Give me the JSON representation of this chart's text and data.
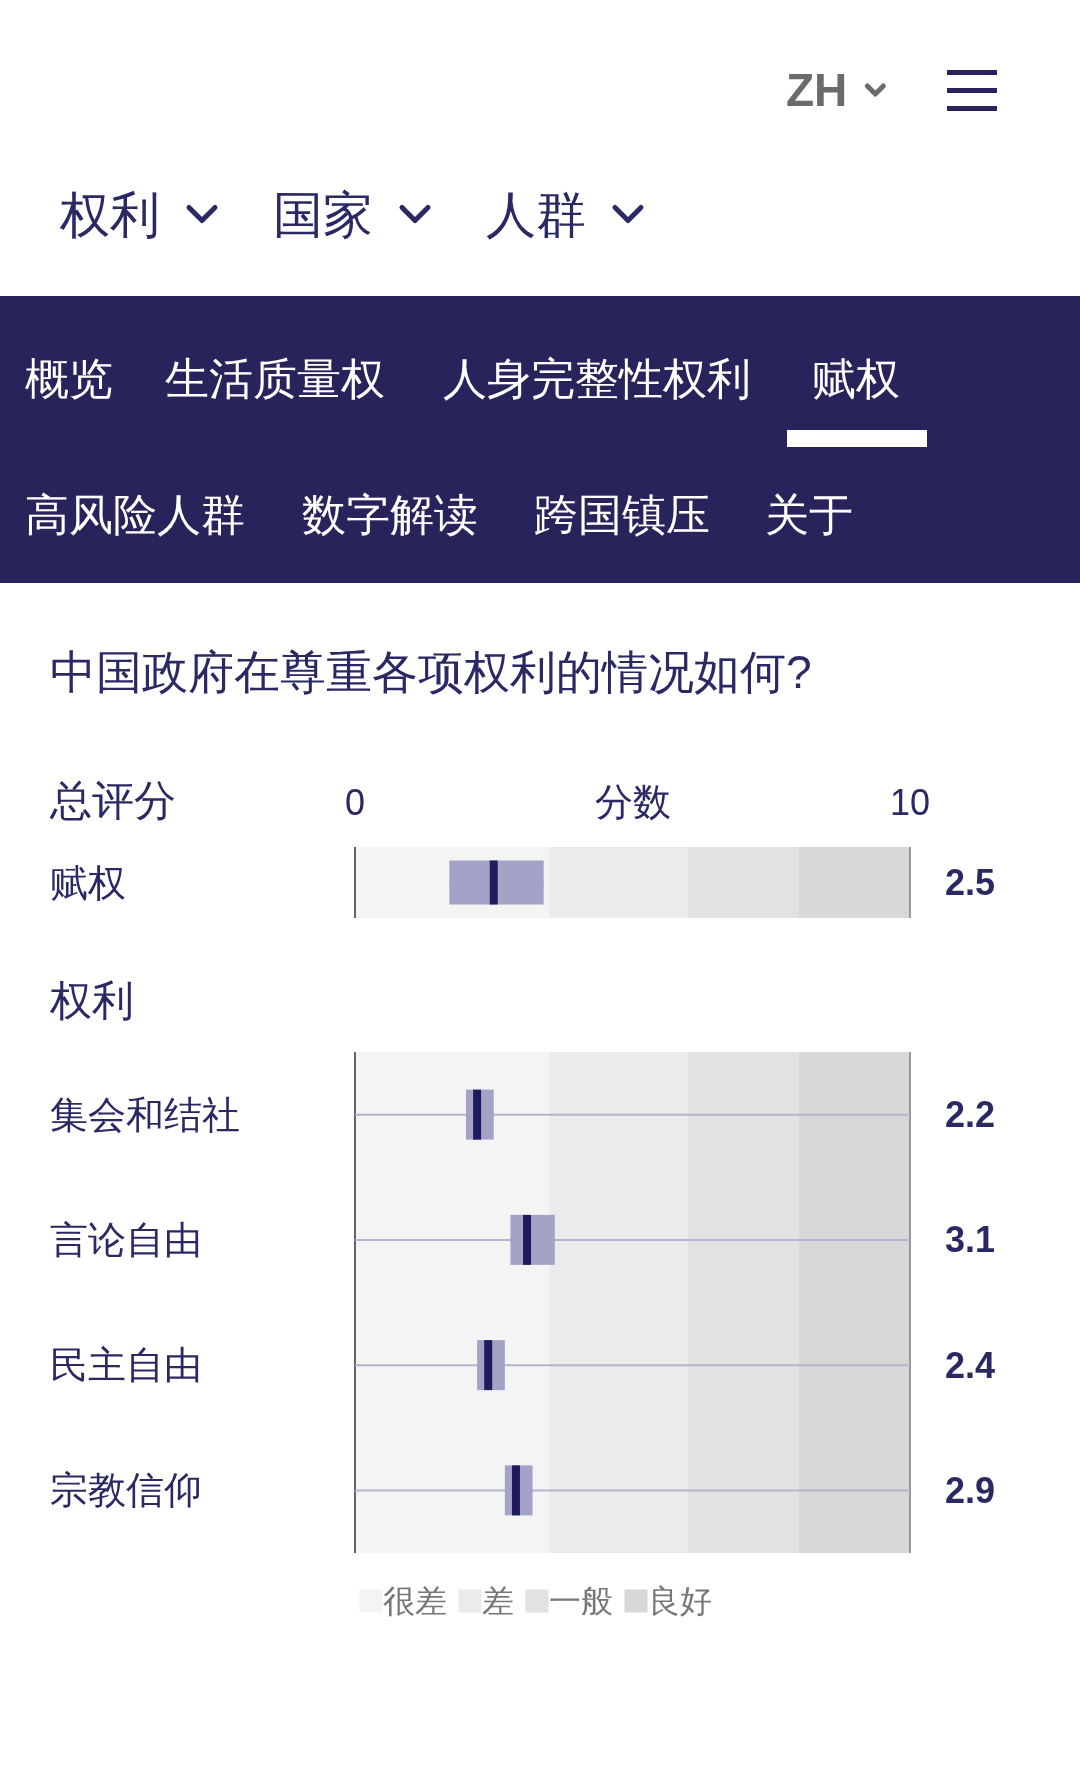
{
  "chart_data": [
    {
      "type": "other",
      "annotations": [
        "ZH",
        "权利",
        "国家",
        "人群",
        "概览",
        "生活质量权",
        "人身完整性权利",
        "赋权",
        "高风险人群",
        "数字解读",
        "跨国镇压",
        "关于"
      ]
    },
    {
      "type": "box",
      "orientation": "horizontal",
      "title": "中国政府在尊重各项权利的情况如何?",
      "ylabel": "总评分",
      "xlabel": "分数",
      "categories": [
        "赋权"
      ],
      "boxes": [
        {
          "low": 1.7,
          "q1": 1.7,
          "median": 2.5,
          "q3": 3.4,
          "high": 3.4
        }
      ],
      "value_labels": [
        "2.5"
      ],
      "color": "#a3a3c8",
      "xlim": [
        0,
        10
      ],
      "xticks": [
        0,
        10
      ],
      "bands": [
        {
          "axis": "x",
          "from": 0,
          "to": 3.5,
          "color": "#f4f4f4"
        },
        {
          "axis": "x",
          "from": 3.5,
          "to": 6,
          "color": "#ebebeb"
        },
        {
          "axis": "x",
          "from": 6,
          "to": 8,
          "color": "#e2e2e2"
        },
        {
          "axis": "x",
          "from": 8,
          "to": 10,
          "color": "#d8d8d8"
        }
      ]
    },
    {
      "type": "box",
      "orientation": "horizontal",
      "ylabel": "权利",
      "categories": [
        "集会和结社",
        "言论自由",
        "民主自由",
        "宗教信仰"
      ],
      "boxes": [
        {
          "low": 2.0,
          "q1": 2.0,
          "median": 2.2,
          "q3": 2.5,
          "high": 2.5
        },
        {
          "low": 2.8,
          "q1": 2.8,
          "median": 3.1,
          "q3": 3.6,
          "high": 3.6
        },
        {
          "low": 2.2,
          "q1": 2.2,
          "median": 2.4,
          "q3": 2.7,
          "high": 2.7
        },
        {
          "low": 2.7,
          "q1": 2.7,
          "median": 2.9,
          "q3": 3.2,
          "high": 3.2
        }
      ],
      "value_labels": [
        "2.2",
        "3.1",
        "2.4",
        "2.9"
      ],
      "grid": true,
      "color": "#a3a3c8",
      "xlim": [
        0,
        10
      ],
      "tick_labels": "y",
      "legend": "bottom",
      "bands": [
        {
          "axis": "x",
          "from": 0,
          "to": 3.5,
          "color": "#f4f4f4",
          "label": "很差"
        },
        {
          "axis": "x",
          "from": 3.5,
          "to": 6,
          "color": "#ebebeb",
          "label": "差"
        },
        {
          "axis": "x",
          "from": 6,
          "to": 8,
          "color": "#e2e2e2",
          "label": "一般"
        },
        {
          "axis": "x",
          "from": 8,
          "to": 10,
          "color": "#d8d8d8",
          "label": "良好"
        }
      ]
    }
  ]
}
